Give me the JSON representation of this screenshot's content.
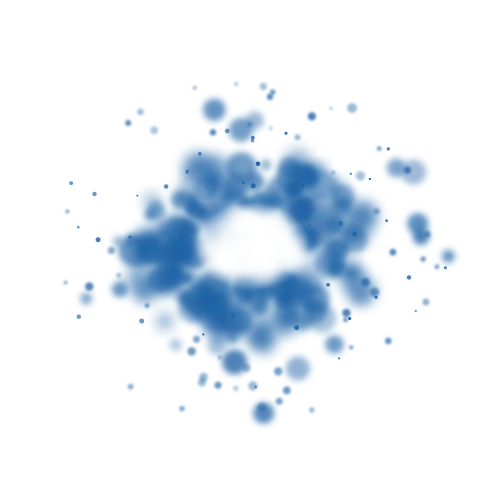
{
  "image": {
    "background_color": "#ffffff",
    "particle_color": "#1f62a5",
    "subject": "particle-cloud"
  }
}
